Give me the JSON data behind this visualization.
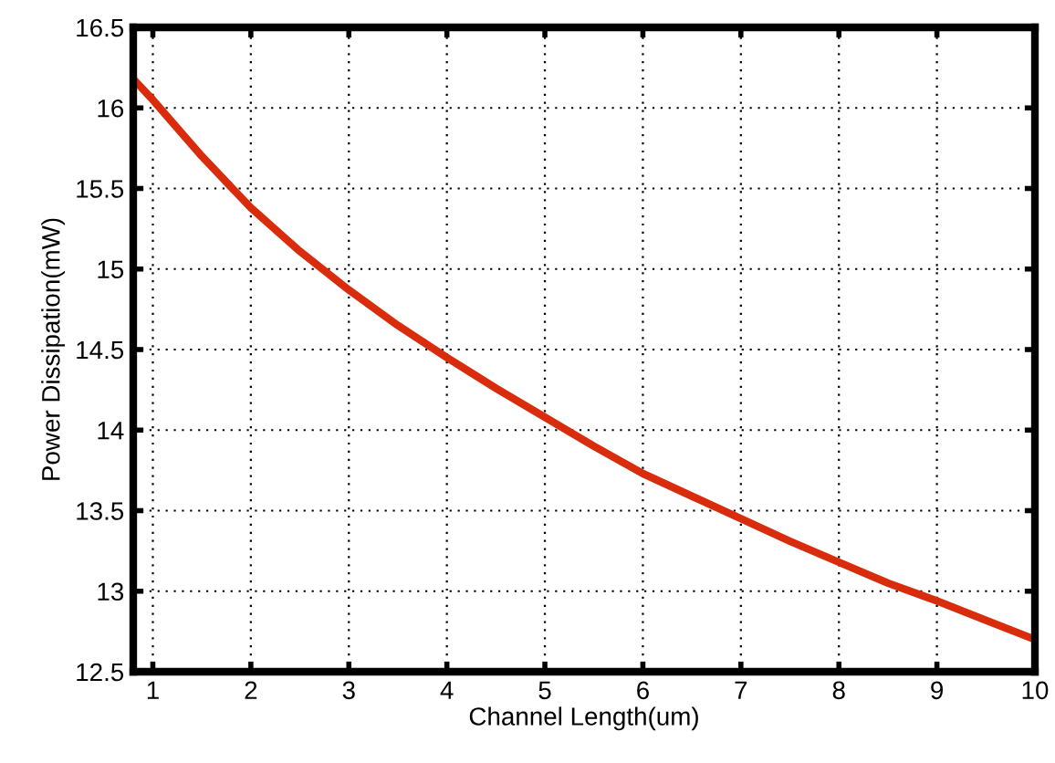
{
  "chart_data": {
    "type": "line",
    "xlabel": "Channel Length(um)",
    "ylabel": "Power Dissipation(mW)",
    "x": [
      0.8,
      1,
      1.5,
      2,
      2.5,
      3,
      3.5,
      4,
      4.5,
      5,
      5.5,
      6,
      6.5,
      7,
      7.5,
      8,
      8.5,
      9,
      9.5,
      10
    ],
    "series": [
      {
        "color": "#d82c0c",
        "values": [
          16.18,
          16.05,
          15.7,
          15.38,
          15.11,
          14.87,
          14.65,
          14.45,
          14.26,
          14.08,
          13.9,
          13.73,
          13.59,
          13.45,
          13.31,
          13.18,
          13.05,
          12.94,
          12.82,
          12.7
        ]
      }
    ],
    "xlim": [
      0.8,
      10
    ],
    "xticks": [
      1,
      2,
      3,
      4,
      5,
      6,
      7,
      8,
      9,
      10
    ],
    "ylim": [
      12.5,
      16.5
    ],
    "yticks": [
      12.5,
      13,
      13.5,
      14,
      14.5,
      15,
      15.5,
      16,
      16.5
    ],
    "grid": true,
    "marker": "none",
    "line_style": "solid"
  }
}
